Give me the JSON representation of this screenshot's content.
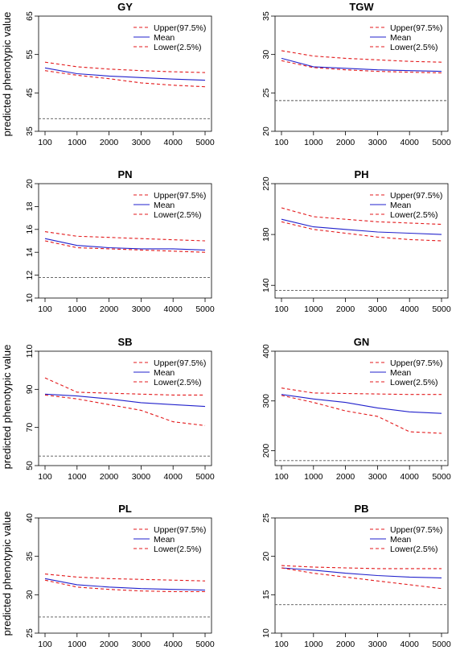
{
  "figure": {
    "ylabel": "predicted phenotypic value",
    "legend_labels": [
      "Upper(97.5%)",
      "Mean",
      "Lower(2.5%)"
    ]
  },
  "chart_data": [
    {
      "type": "line",
      "title": "GY",
      "xlabel": "",
      "ylabel": "predicted phenotypic value",
      "x": [
        100,
        1000,
        2000,
        3000,
        4000,
        5000
      ],
      "xticks": [
        100,
        1000,
        2000,
        3000,
        4000,
        5000
      ],
      "ylim": [
        35,
        65
      ],
      "yticks": [
        35,
        45,
        55,
        65
      ],
      "series": [
        {
          "name": "Upper(97.5%)",
          "color": "#e31a1c",
          "dash": true,
          "values": [
            53.0,
            51.8,
            51.2,
            50.8,
            50.5,
            50.3
          ]
        },
        {
          "name": "Mean",
          "color": "#2222cc",
          "dash": false,
          "values": [
            51.5,
            50.0,
            49.4,
            49.0,
            48.6,
            48.3
          ]
        },
        {
          "name": "Lower(2.5%)",
          "color": "#e31a1c",
          "dash": true,
          "values": [
            50.8,
            49.6,
            48.7,
            47.6,
            47.0,
            46.6
          ]
        }
      ],
      "hline": 38.3,
      "legend": "top-right"
    },
    {
      "type": "line",
      "title": "TGW",
      "xlabel": "",
      "ylabel": "",
      "x": [
        100,
        1000,
        2000,
        3000,
        4000,
        5000
      ],
      "xticks": [
        100,
        1000,
        2000,
        3000,
        4000,
        5000
      ],
      "ylim": [
        20,
        35
      ],
      "yticks": [
        20,
        25,
        30,
        35
      ],
      "series": [
        {
          "name": "Upper(97.5%)",
          "color": "#e31a1c",
          "dash": true,
          "values": [
            30.5,
            29.8,
            29.5,
            29.3,
            29.1,
            29.0
          ]
        },
        {
          "name": "Mean",
          "color": "#2222cc",
          "dash": false,
          "values": [
            29.5,
            28.4,
            28.2,
            28.0,
            27.9,
            27.8
          ]
        },
        {
          "name": "Lower(2.5%)",
          "color": "#e31a1c",
          "dash": true,
          "values": [
            29.2,
            28.3,
            28.0,
            27.8,
            27.7,
            27.6
          ]
        }
      ],
      "hline": 24.0,
      "legend": "top-right"
    },
    {
      "type": "line",
      "title": "PN",
      "xlabel": "",
      "ylabel": "predicted phenotypic value",
      "x": [
        100,
        1000,
        2000,
        3000,
        4000,
        5000
      ],
      "xticks": [
        100,
        1000,
        2000,
        3000,
        4000,
        5000
      ],
      "ylim": [
        10,
        20
      ],
      "yticks": [
        10,
        12,
        14,
        16,
        18,
        20
      ],
      "series": [
        {
          "name": "Upper(97.5%)",
          "color": "#e31a1c",
          "dash": true,
          "values": [
            15.8,
            15.4,
            15.3,
            15.2,
            15.1,
            15.0
          ]
        },
        {
          "name": "Mean",
          "color": "#2222cc",
          "dash": false,
          "values": [
            15.2,
            14.6,
            14.4,
            14.3,
            14.3,
            14.2
          ]
        },
        {
          "name": "Lower(2.5%)",
          "color": "#e31a1c",
          "dash": true,
          "values": [
            15.0,
            14.4,
            14.3,
            14.2,
            14.1,
            14.0
          ]
        }
      ],
      "hline": 11.8,
      "legend": "top-right"
    },
    {
      "type": "line",
      "title": "PH",
      "xlabel": "",
      "ylabel": "",
      "x": [
        100,
        1000,
        2000,
        3000,
        4000,
        5000
      ],
      "xticks": [
        100,
        1000,
        2000,
        3000,
        4000,
        5000
      ],
      "ylim": [
        130,
        220
      ],
      "yticks": [
        140,
        180,
        220
      ],
      "series": [
        {
          "name": "Upper(97.5%)",
          "color": "#e31a1c",
          "dash": true,
          "values": [
            201,
            194,
            192,
            190,
            189,
            188
          ]
        },
        {
          "name": "Mean",
          "color": "#2222cc",
          "dash": false,
          "values": [
            192,
            186,
            184,
            182,
            181,
            180
          ]
        },
        {
          "name": "Lower(2.5%)",
          "color": "#e31a1c",
          "dash": true,
          "values": [
            190,
            184,
            181,
            178,
            176,
            175
          ]
        }
      ],
      "hline": 136,
      "legend": "top-right"
    },
    {
      "type": "line",
      "title": "SB",
      "xlabel": "",
      "ylabel": "predicted phenotypic value",
      "x": [
        100,
        1000,
        2000,
        3000,
        4000,
        5000
      ],
      "xticks": [
        100,
        1000,
        2000,
        3000,
        4000,
        5000
      ],
      "ylim": [
        50,
        110
      ],
      "yticks": [
        50,
        70,
        90,
        110
      ],
      "series": [
        {
          "name": "Upper(97.5%)",
          "color": "#e31a1c",
          "dash": true,
          "values": [
            96,
            88.5,
            88,
            87.5,
            87,
            87
          ]
        },
        {
          "name": "Mean",
          "color": "#2222cc",
          "dash": false,
          "values": [
            87.5,
            86.5,
            85,
            83,
            82,
            81
          ]
        },
        {
          "name": "Lower(2.5%)",
          "color": "#e31a1c",
          "dash": true,
          "values": [
            87,
            85,
            82,
            79,
            73,
            71
          ]
        }
      ],
      "hline": 55,
      "legend": "top-right"
    },
    {
      "type": "line",
      "title": "GN",
      "xlabel": "",
      "ylabel": "",
      "x": [
        100,
        1000,
        2000,
        3000,
        4000,
        5000
      ],
      "xticks": [
        100,
        1000,
        2000,
        3000,
        4000,
        5000
      ],
      "ylim": [
        170,
        400
      ],
      "yticks": [
        200,
        300,
        400
      ],
      "series": [
        {
          "name": "Upper(97.5%)",
          "color": "#e31a1c",
          "dash": true,
          "values": [
            326,
            316,
            315,
            314,
            313,
            313
          ]
        },
        {
          "name": "Mean",
          "color": "#2222cc",
          "dash": false,
          "values": [
            313,
            304,
            297,
            286,
            278,
            275
          ]
        },
        {
          "name": "Lower(2.5%)",
          "color": "#e31a1c",
          "dash": true,
          "values": [
            311,
            297,
            280,
            269,
            238,
            235
          ]
        }
      ],
      "hline": 180,
      "legend": "top-right"
    },
    {
      "type": "line",
      "title": "PL",
      "xlabel": "",
      "ylabel": "predicted phenotypic value",
      "x": [
        100,
        1000,
        2000,
        3000,
        4000,
        5000
      ],
      "xticks": [
        100,
        1000,
        2000,
        3000,
        4000,
        5000
      ],
      "ylim": [
        25,
        40
      ],
      "yticks": [
        25,
        30,
        35,
        40
      ],
      "series": [
        {
          "name": "Upper(97.5%)",
          "color": "#e31a1c",
          "dash": true,
          "values": [
            32.7,
            32.3,
            32.1,
            32.0,
            31.9,
            31.8
          ]
        },
        {
          "name": "Mean",
          "color": "#2222cc",
          "dash": false,
          "values": [
            32.1,
            31.3,
            31.0,
            30.8,
            30.7,
            30.6
          ]
        },
        {
          "name": "Lower(2.5%)",
          "color": "#e31a1c",
          "dash": true,
          "values": [
            31.9,
            31.0,
            30.7,
            30.5,
            30.4,
            30.4
          ]
        }
      ],
      "hline": 27.1,
      "legend": "top-right"
    },
    {
      "type": "line",
      "title": "PB",
      "xlabel": "",
      "ylabel": "",
      "x": [
        100,
        1000,
        2000,
        3000,
        4000,
        5000
      ],
      "xticks": [
        100,
        1000,
        2000,
        3000,
        4000,
        5000
      ],
      "ylim": [
        10,
        25
      ],
      "yticks": [
        10,
        15,
        20,
        25
      ],
      "series": [
        {
          "name": "Upper(97.5%)",
          "color": "#e31a1c",
          "dash": true,
          "values": [
            18.8,
            18.6,
            18.5,
            18.4,
            18.4,
            18.4
          ]
        },
        {
          "name": "Mean",
          "color": "#2222cc",
          "dash": false,
          "values": [
            18.5,
            18.2,
            17.8,
            17.5,
            17.3,
            17.2
          ]
        },
        {
          "name": "Lower(2.5%)",
          "color": "#e31a1c",
          "dash": true,
          "values": [
            18.5,
            17.8,
            17.3,
            16.8,
            16.3,
            15.8
          ]
        }
      ],
      "hline": 13.7,
      "legend": "top-right"
    }
  ]
}
